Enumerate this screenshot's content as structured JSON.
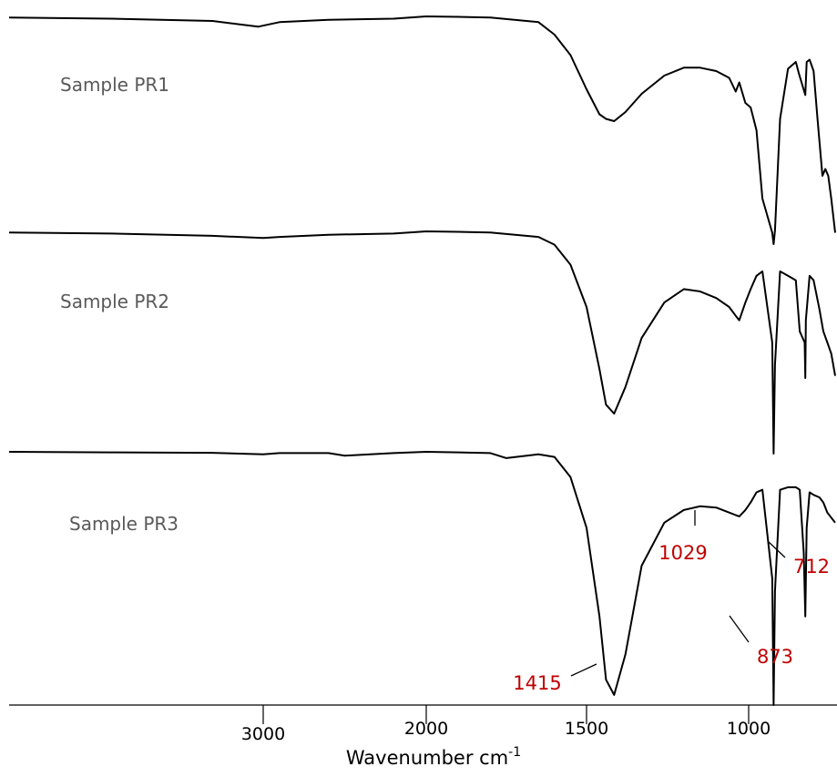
{
  "chart_data": {
    "type": "line",
    "title": "",
    "xlabel": "Wavenumber cm",
    "xlabel_superscript": "-1",
    "ylabel": "",
    "x_ticks": [
      {
        "value": 3000,
        "label": "3000"
      },
      {
        "value": 2000,
        "label": "2000"
      },
      {
        "value": 1500,
        "label": "1500"
      },
      {
        "value": 1000,
        "label": "1000"
      }
    ],
    "x_axis_note": "non-linear wavenumber axis (scale changes at 2000)",
    "colors": {
      "trace": "#000000",
      "sample_label": "#595959",
      "peak_label": "#c00000"
    },
    "series": [
      {
        "name": "Sample PR1",
        "x": [
          4000,
          3600,
          3200,
          3020,
          2900,
          2600,
          2200,
          2000,
          1900,
          1800,
          1650,
          1600,
          1550,
          1500,
          1460,
          1440,
          1415,
          1380,
          1330,
          1260,
          1200,
          1150,
          1100,
          1060,
          1040,
          1029,
          1010,
          990,
          960,
          930,
          880,
          873,
          866,
          840,
          800,
          760,
          745,
          712,
          705,
          690,
          670,
          650,
          625,
          610,
          595,
          580,
          560
        ],
        "y": [
          0.995,
          0.99,
          0.98,
          0.955,
          0.975,
          0.985,
          0.99,
          1.0,
          0.998,
          0.995,
          0.975,
          0.92,
          0.83,
          0.68,
          0.57,
          0.55,
          0.54,
          0.58,
          0.66,
          0.74,
          0.775,
          0.775,
          0.76,
          0.73,
          0.67,
          0.71,
          0.62,
          0.6,
          0.5,
          0.2,
          0.05,
          0.0,
          0.06,
          0.55,
          0.77,
          0.8,
          0.75,
          0.655,
          0.8,
          0.81,
          0.76,
          0.55,
          0.3,
          0.33,
          0.3,
          0.2,
          0.05
        ]
      },
      {
        "name": "Sample PR2",
        "x": [
          4000,
          3600,
          3200,
          3000,
          2900,
          2600,
          2200,
          2000,
          1900,
          1800,
          1650,
          1600,
          1550,
          1500,
          1460,
          1440,
          1415,
          1380,
          1330,
          1260,
          1200,
          1150,
          1100,
          1060,
          1040,
          1029,
          1010,
          990,
          960,
          930,
          880,
          873,
          866,
          840,
          800,
          760,
          740,
          715,
          712,
          709,
          690,
          670,
          640,
          620,
          600,
          580,
          560
        ],
        "y": [
          0.995,
          0.99,
          0.98,
          0.97,
          0.975,
          0.985,
          0.99,
          1.0,
          0.998,
          0.995,
          0.975,
          0.94,
          0.85,
          0.66,
          0.38,
          0.22,
          0.18,
          0.3,
          0.52,
          0.68,
          0.74,
          0.73,
          0.7,
          0.66,
          0.62,
          0.6,
          0.68,
          0.74,
          0.8,
          0.82,
          0.5,
          0.0,
          0.4,
          0.82,
          0.8,
          0.78,
          0.55,
          0.5,
          0.34,
          0.6,
          0.8,
          0.78,
          0.65,
          0.55,
          0.5,
          0.45,
          0.35
        ]
      },
      {
        "name": "Sample PR3",
        "x": [
          4000,
          3600,
          3200,
          3000,
          2900,
          2600,
          2500,
          2200,
          2000,
          1900,
          1800,
          1750,
          1650,
          1600,
          1550,
          1500,
          1460,
          1440,
          1415,
          1380,
          1330,
          1260,
          1200,
          1150,
          1100,
          1060,
          1040,
          1029,
          1010,
          990,
          960,
          930,
          880,
          873,
          866,
          840,
          800,
          760,
          740,
          720,
          712,
          705,
          690,
          670,
          640,
          620,
          600,
          580,
          560
        ],
        "y": [
          1.0,
          0.998,
          0.996,
          0.99,
          0.995,
          0.995,
          0.985,
          0.995,
          1.0,
          0.998,
          0.995,
          0.975,
          0.99,
          0.98,
          0.9,
          0.7,
          0.35,
          0.1,
          0.04,
          0.2,
          0.55,
          0.72,
          0.77,
          0.785,
          0.78,
          0.76,
          0.75,
          0.745,
          0.77,
          0.8,
          0.84,
          0.85,
          0.5,
          0.0,
          0.45,
          0.85,
          0.86,
          0.86,
          0.85,
          0.6,
          0.35,
          0.7,
          0.84,
          0.83,
          0.82,
          0.8,
          0.76,
          0.74,
          0.72
        ]
      }
    ],
    "annotations": [
      {
        "text": "1415",
        "x": 1415,
        "series": "Sample PR3"
      },
      {
        "text": "1029",
        "x": 1029,
        "series": "Sample PR3"
      },
      {
        "text": "873",
        "x": 873,
        "series": "Sample PR3"
      },
      {
        "text": "712",
        "x": 712,
        "series": "Sample PR3"
      }
    ]
  }
}
